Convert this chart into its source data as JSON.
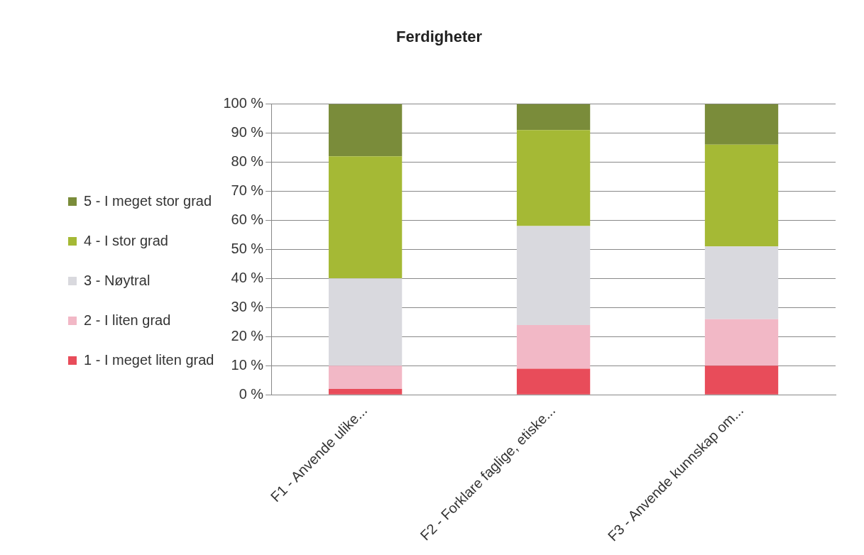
{
  "chart_data": {
    "type": "bar",
    "title": "Ferdigheter",
    "stacked": true,
    "legend": "left",
    "grid": "y",
    "categories": [
      "F1 - Anvende ulike...",
      "F2 - Forklare faglige, etiske...",
      "F3 - Anvende kunnskap om..."
    ],
    "series": [
      {
        "name": "1 - I meget liten grad",
        "color": "#e84c5a",
        "values": [
          2,
          9,
          10
        ]
      },
      {
        "name": "2 - I liten grad",
        "color": "#f2b8c6",
        "values": [
          8,
          15,
          16
        ]
      },
      {
        "name": "3 - Nøytral",
        "color": "#d9d9de",
        "values": [
          30,
          34,
          25
        ]
      },
      {
        "name": "4 - I stor grad",
        "color": "#a5b935",
        "values": [
          42,
          33,
          35
        ]
      },
      {
        "name": "5 - I meget stor grad",
        "color": "#7a8c3a",
        "values": [
          18,
          9,
          14
        ]
      }
    ],
    "ylim": [
      0,
      100
    ],
    "yticks": [
      {
        "value": 0,
        "label": "0 %"
      },
      {
        "value": 10,
        "label": "10 %"
      },
      {
        "value": 20,
        "label": "20 %"
      },
      {
        "value": 30,
        "label": "30 %"
      },
      {
        "value": 40,
        "label": "40 %"
      },
      {
        "value": 50,
        "label": "50 %"
      },
      {
        "value": 60,
        "label": "60 %"
      },
      {
        "value": 70,
        "label": "70 %"
      },
      {
        "value": 80,
        "label": "80 %"
      },
      {
        "value": 90,
        "label": "90 %"
      },
      {
        "value": 100,
        "label": "100 %"
      }
    ]
  }
}
